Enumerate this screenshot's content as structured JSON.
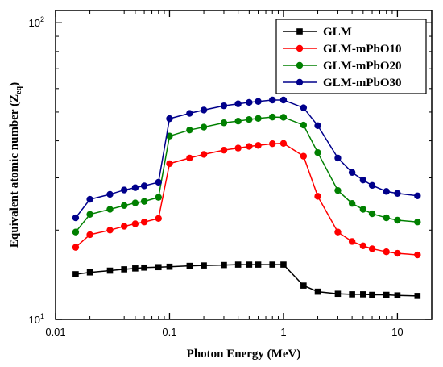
{
  "chart_data": {
    "type": "line",
    "xlabel": "Photon Energy (MeV)",
    "ylabel_main": "Equivalent atomic number (Z",
    "ylabel_sub": "eq",
    "ylabel_close": ")",
    "x_scale": "log",
    "y_scale": "log",
    "xlim": [
      0.01,
      20
    ],
    "ylim": [
      10,
      110
    ],
    "x_ticks": [
      {
        "value": 0.01,
        "label": "0.01"
      },
      {
        "value": 0.1,
        "label": "0.1"
      },
      {
        "value": 1,
        "label": "1"
      },
      {
        "value": 10,
        "label": "10"
      }
    ],
    "y_ticks": [
      {
        "value": 10,
        "label": "10",
        "exp": "1"
      },
      {
        "value": 100,
        "label": "10",
        "exp": "2"
      }
    ],
    "grid": false,
    "legend_position": "top-right",
    "x": [
      0.015,
      0.02,
      0.03,
      0.04,
      0.05,
      0.06,
      0.08,
      0.1,
      0.15,
      0.2,
      0.3,
      0.4,
      0.5,
      0.6,
      0.8,
      1,
      1.5,
      2,
      3,
      4,
      5,
      6,
      8,
      10,
      15
    ],
    "series": [
      {
        "name": "GLM",
        "color": "#000000",
        "marker": "square",
        "values": [
          14.2,
          14.4,
          14.6,
          14.75,
          14.85,
          14.95,
          15.0,
          15.05,
          15.15,
          15.2,
          15.25,
          15.3,
          15.3,
          15.3,
          15.3,
          15.3,
          13.0,
          12.4,
          12.2,
          12.15,
          12.15,
          12.1,
          12.1,
          12.05,
          12.0
        ]
      },
      {
        "name": "GLM-mPbO10",
        "color": "#ff0000",
        "marker": "circle",
        "values": [
          17.5,
          19.3,
          20.0,
          20.6,
          21.0,
          21.3,
          21.9,
          33.5,
          35.0,
          36.0,
          37.2,
          37.8,
          38.3,
          38.6,
          39.1,
          39.2,
          35.5,
          26.0,
          19.7,
          18.3,
          17.7,
          17.3,
          16.9,
          16.7,
          16.5
        ]
      },
      {
        "name": "GLM-mPbO20",
        "color": "#008000",
        "marker": "circle",
        "values": [
          19.7,
          22.6,
          23.5,
          24.2,
          24.7,
          25.0,
          25.8,
          41.5,
          43.5,
          44.5,
          46.0,
          46.6,
          47.2,
          47.6,
          48.1,
          48.0,
          45.2,
          36.5,
          27.2,
          24.6,
          23.5,
          22.7,
          22.0,
          21.6,
          21.3
        ]
      },
      {
        "name": "GLM-mPbO30",
        "color": "#00008b",
        "marker": "circle",
        "values": [
          22.0,
          25.4,
          26.4,
          27.3,
          27.8,
          28.2,
          29.0,
          47.5,
          49.5,
          50.8,
          52.5,
          53.3,
          53.9,
          54.3,
          54.9,
          54.9,
          51.7,
          45.0,
          35.0,
          31.3,
          29.5,
          28.3,
          27.0,
          26.6,
          26.1
        ]
      }
    ]
  }
}
